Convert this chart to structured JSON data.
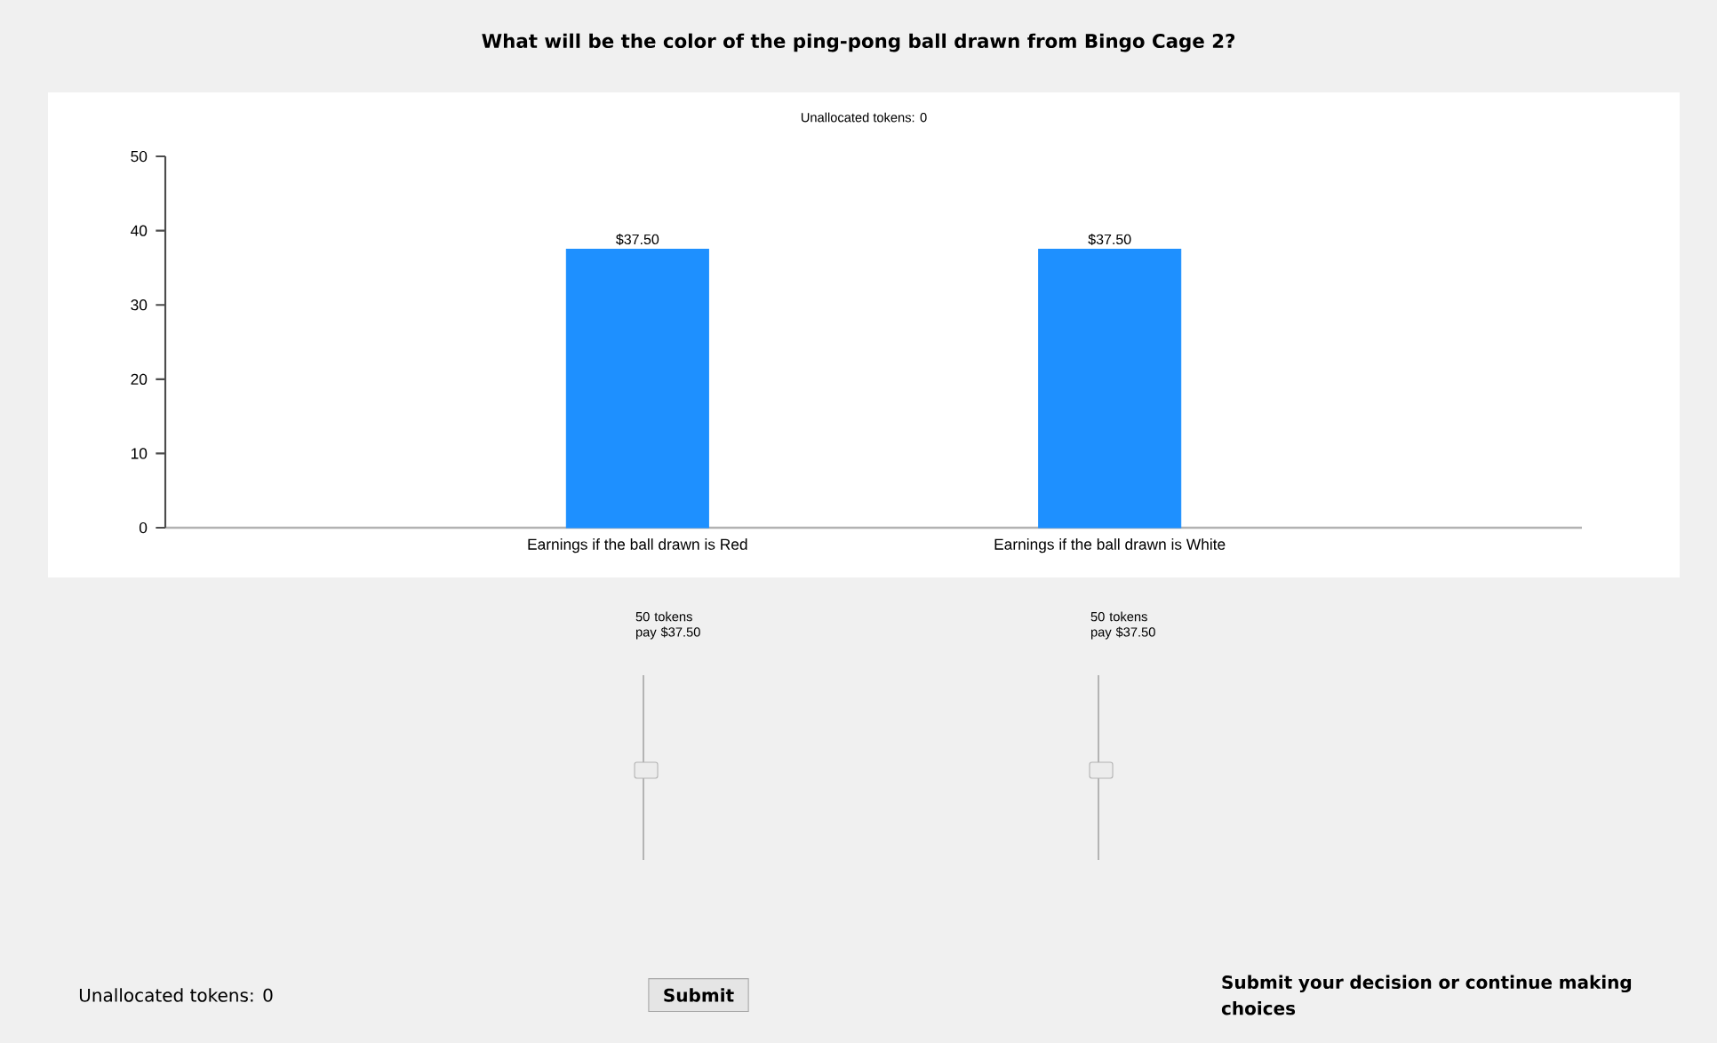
{
  "chart_data": {
    "type": "bar",
    "title": "What will be the color of the ping-pong ball drawn from Bingo Cage 2?",
    "subtitle": "Unallocated tokens: 0",
    "categories": [
      "Earnings if the ball drawn is Red",
      "Earnings if the ball drawn is White"
    ],
    "values": [
      37.5,
      37.5
    ],
    "value_labels": [
      "$37.50",
      "$37.50"
    ],
    "color": "#1e90ff",
    "ylim": [
      0,
      50
    ],
    "yticks": [
      0,
      10,
      20,
      30,
      40,
      50
    ],
    "grid": false,
    "annotations": [
      "50 tokens pay $37.50",
      "50 tokens pay $37.50",
      "Unallocated tokens: 0",
      "Submit",
      "Submit your decision or continue making choices"
    ]
  }
}
